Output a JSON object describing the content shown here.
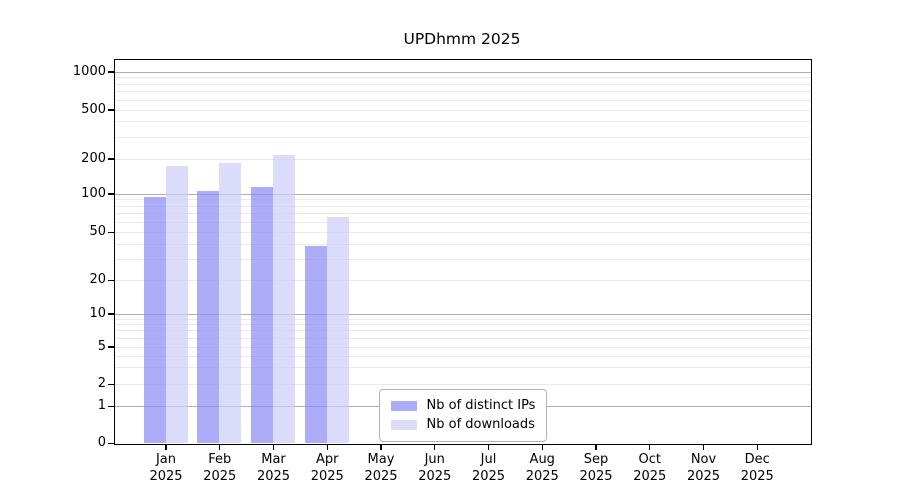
{
  "chart_data": {
    "type": "bar",
    "title": "UPDhmm 2025",
    "x_tick_labels": [
      {
        "month": "Jan",
        "year": "2025"
      },
      {
        "month": "Feb",
        "year": "2025"
      },
      {
        "month": "Mar",
        "year": "2025"
      },
      {
        "month": "Apr",
        "year": "2025"
      },
      {
        "month": "May",
        "year": "2025"
      },
      {
        "month": "Jun",
        "year": "2025"
      },
      {
        "month": "Jul",
        "year": "2025"
      },
      {
        "month": "Aug",
        "year": "2025"
      },
      {
        "month": "Sep",
        "year": "2025"
      },
      {
        "month": "Oct",
        "year": "2025"
      },
      {
        "month": "Nov",
        "year": "2025"
      },
      {
        "month": "Dec",
        "year": "2025"
      }
    ],
    "series": [
      {
        "name": "Nb of distinct IPs",
        "color": "#acacfa",
        "values": [
          94,
          105,
          113,
          38,
          0,
          0,
          0,
          0,
          0,
          0,
          0,
          0
        ]
      },
      {
        "name": "Nb of downloads",
        "color": "#dbdbfa",
        "values": [
          174,
          184,
          215,
          65,
          0,
          0,
          0,
          0,
          0,
          0,
          0,
          0
        ]
      }
    ],
    "y_tick_values": [
      0,
      1,
      2,
      5,
      10,
      20,
      50,
      100,
      200,
      500,
      1000
    ],
    "ylim": [
      0,
      1300
    ],
    "y_scale": "log-like",
    "xlabel": "",
    "ylabel": "",
    "grid": true,
    "legend_position": "lower center"
  },
  "colors": {
    "bar_distinct_ips": "#acacfa",
    "bar_downloads": "#dbdbfa",
    "grid_major": "#aeaeae",
    "grid_minor": "#e9e9e9",
    "axis": "#000000",
    "legend_border": "#b3b3b3",
    "background": "#ffffff"
  }
}
